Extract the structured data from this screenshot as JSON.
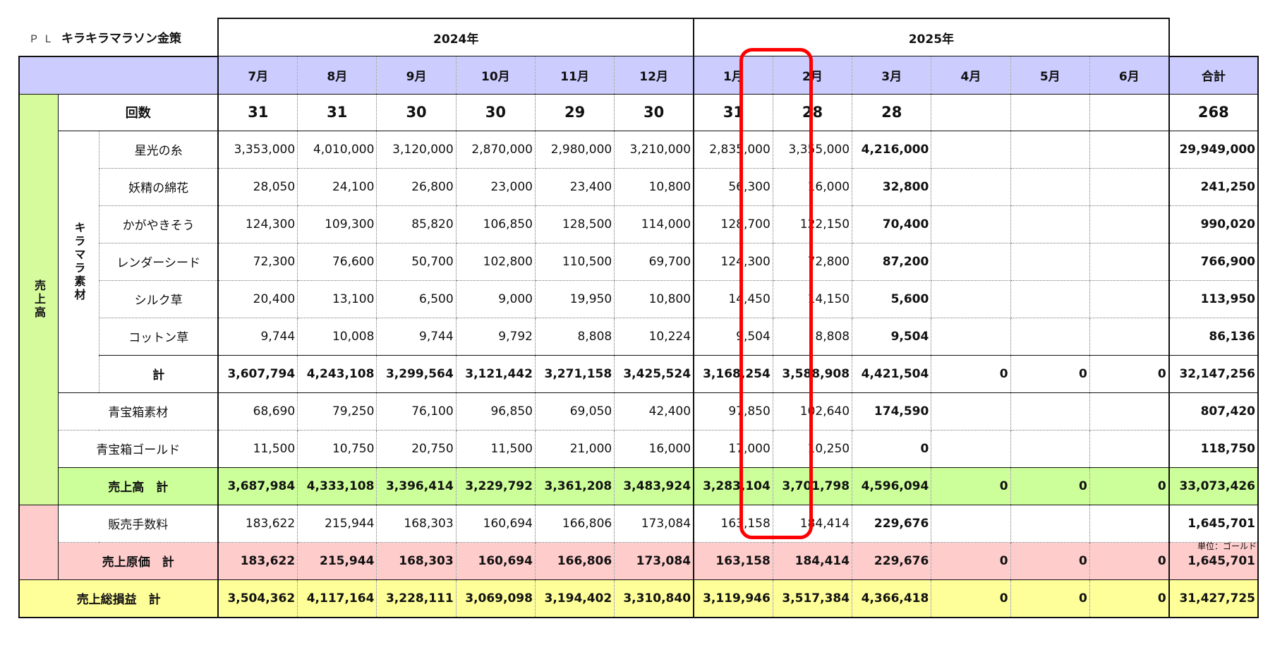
{
  "title": {
    "prefix": "ＰＬ",
    "name": "キラキラマラソン金策"
  },
  "years": [
    "2024年",
    "2025年"
  ],
  "months": [
    "7月",
    "8月",
    "9月",
    "10月",
    "11月",
    "12月",
    "1月",
    "2月",
    "3月",
    "4月",
    "5月",
    "6月"
  ],
  "total_header": "合計",
  "count_row": {
    "label": "回数",
    "values": [
      "31",
      "31",
      "30",
      "30",
      "29",
      "30",
      "31",
      "28",
      "28",
      "",
      "",
      ""
    ],
    "total": "268"
  },
  "sales_label": "売上高",
  "kiramara_label": "キラマラ素材",
  "kiramara_rows": [
    {
      "label": "星光の糸",
      "values": [
        "3,353,000",
        "4,010,000",
        "3,120,000",
        "2,870,000",
        "2,980,000",
        "3,210,000",
        "2,835,000",
        "3,355,000",
        "4,216,000",
        "",
        "",
        ""
      ],
      "total": "29,949,000"
    },
    {
      "label": "妖精の綿花",
      "values": [
        "28,050",
        "24,100",
        "26,800",
        "23,000",
        "23,400",
        "10,800",
        "56,300",
        "16,000",
        "32,800",
        "",
        "",
        ""
      ],
      "total": "241,250"
    },
    {
      "label": "かがやきそう",
      "values": [
        "124,300",
        "109,300",
        "85,820",
        "106,850",
        "128,500",
        "114,000",
        "128,700",
        "122,150",
        "70,400",
        "",
        "",
        ""
      ],
      "total": "990,020"
    },
    {
      "label": "レンダーシード",
      "values": [
        "72,300",
        "76,600",
        "50,700",
        "102,800",
        "110,500",
        "69,700",
        "124,300",
        "72,800",
        "87,200",
        "",
        "",
        ""
      ],
      "total": "766,900"
    },
    {
      "label": "シルク草",
      "values": [
        "20,400",
        "13,100",
        "6,500",
        "9,000",
        "19,950",
        "10,800",
        "14,450",
        "14,150",
        "5,600",
        "",
        "",
        ""
      ],
      "total": "113,950"
    },
    {
      "label": "コットン草",
      "values": [
        "9,744",
        "10,008",
        "9,744",
        "9,792",
        "8,808",
        "10,224",
        "9,504",
        "8,808",
        "9,504",
        "",
        "",
        ""
      ],
      "total": "86,136"
    }
  ],
  "kiramara_total": {
    "label": "計",
    "values": [
      "3,607,794",
      "4,243,108",
      "3,299,564",
      "3,121,442",
      "3,271,158",
      "3,425,524",
      "3,168,254",
      "3,588,908",
      "4,421,504",
      "0",
      "0",
      "0"
    ],
    "total": "32,147,256"
  },
  "blue_rows": [
    {
      "label": "青宝箱素材",
      "values": [
        "68,690",
        "79,250",
        "76,100",
        "96,850",
        "69,050",
        "42,400",
        "97,850",
        "102,640",
        "174,590",
        "",
        "",
        ""
      ],
      "total": "807,420"
    },
    {
      "label": "青宝箱ゴールド",
      "values": [
        "11,500",
        "10,750",
        "20,750",
        "11,500",
        "21,000",
        "16,000",
        "17,000",
        "10,250",
        "0",
        "",
        "",
        ""
      ],
      "total": "118,750"
    }
  ],
  "sales_total": {
    "label": "売上高　計",
    "values": [
      "3,687,984",
      "4,333,108",
      "3,396,414",
      "3,229,792",
      "3,361,208",
      "3,483,924",
      "3,283,104",
      "3,701,798",
      "4,596,094",
      "0",
      "0",
      "0"
    ],
    "total": "33,073,426"
  },
  "fee_row": {
    "label": "販売手数料",
    "values": [
      "183,622",
      "215,944",
      "168,303",
      "160,694",
      "166,806",
      "173,084",
      "163,158",
      "184,414",
      "229,676",
      "",
      "",
      ""
    ],
    "total": "1,645,701"
  },
  "cost_total": {
    "label": "売上原価　計",
    "values": [
      "183,622",
      "215,944",
      "168,303",
      "160,694",
      "166,806",
      "173,084",
      "163,158",
      "184,414",
      "229,676",
      "0",
      "0",
      "0"
    ],
    "total": "1,645,701"
  },
  "gross_total": {
    "label": "売上総損益　計",
    "values": [
      "3,504,362",
      "4,117,164",
      "3,228,111",
      "3,069,098",
      "3,194,402",
      "3,310,840",
      "3,119,946",
      "3,517,384",
      "4,366,418",
      "0",
      "0",
      "0"
    ],
    "total": "31,427,725"
  },
  "unit_note": "単位：ゴールド",
  "colors": {
    "month_header": "#ccccff",
    "sales_green": "#ccff99",
    "cost_pink": "#ffcccc",
    "gross_yellow": "#ffff99",
    "highlight_red": "#ff0000"
  },
  "highlighted_month": "3月"
}
